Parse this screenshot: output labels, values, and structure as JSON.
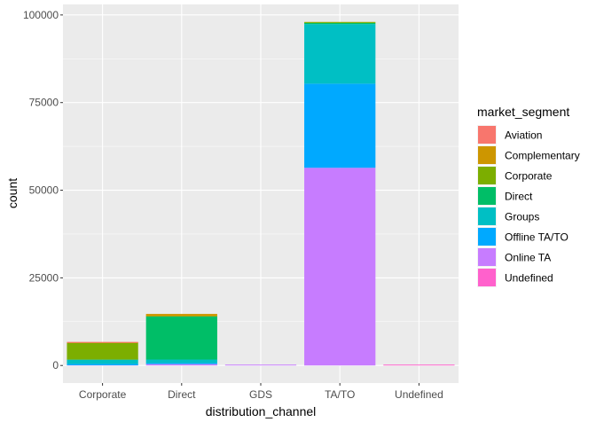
{
  "chart_data": {
    "type": "bar",
    "stacked": true,
    "xlabel": "distribution_channel",
    "ylabel": "count",
    "ylim": [
      -5000,
      103000
    ],
    "yticks": [
      0,
      25000,
      50000,
      75000,
      100000
    ],
    "ytick_labels": [
      "0",
      "25000",
      "50000",
      "75000",
      "100000"
    ],
    "grid": true,
    "legend_placement": "right",
    "categories": [
      "Corporate",
      "Direct",
      "GDS",
      "TA/TO",
      "Undefined"
    ],
    "legend": {
      "title": "market_segment"
    },
    "series": [
      {
        "name": "Aviation",
        "color": "#F8766D",
        "values": [
          230,
          0,
          0,
          0,
          0
        ]
      },
      {
        "name": "Complementary",
        "color": "#CD9600",
        "values": [
          80,
          650,
          0,
          0,
          0
        ]
      },
      {
        "name": "Corporate",
        "color": "#7CAE00",
        "values": [
          4700,
          60,
          0,
          300,
          0
        ]
      },
      {
        "name": "Direct",
        "color": "#00BE67",
        "values": [
          40,
          12300,
          0,
          300,
          0
        ]
      },
      {
        "name": "Groups",
        "color": "#00BFC4",
        "values": [
          1200,
          1000,
          0,
          17000,
          0
        ]
      },
      {
        "name": "Offline TA/TO",
        "color": "#00A9FF",
        "values": [
          400,
          300,
          0,
          24000,
          0
        ]
      },
      {
        "name": "Online TA",
        "color": "#C77CFF",
        "values": [
          50,
          400,
          190,
          56400,
          0
        ]
      },
      {
        "name": "Undefined",
        "color": "#FF61CC",
        "values": [
          0,
          0,
          0,
          0,
          5
        ]
      }
    ]
  }
}
